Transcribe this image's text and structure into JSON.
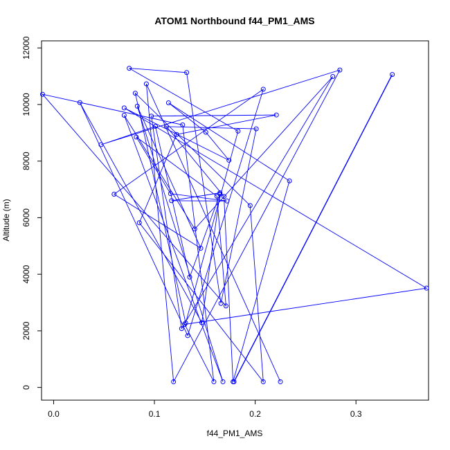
{
  "chart_data": {
    "type": "line",
    "title": "ATOM1 Northbound f44_PM1_AMS",
    "xlabel": "f44_PM1_AMS",
    "ylabel": "Altitude (m)",
    "xlim": [
      -0.012,
      0.372
    ],
    "ylim": [
      -450,
      12250
    ],
    "xticks": [
      0.0,
      0.1,
      0.2,
      0.3
    ],
    "xtick_labels": [
      "0.0",
      "0.1",
      "0.2",
      "0.3"
    ],
    "yticks": [
      0,
      2000,
      4000,
      6000,
      8000,
      10000,
      12000
    ],
    "ytick_labels": [
      "0",
      "2000",
      "4000",
      "6000",
      "8000",
      "10000",
      "12000"
    ],
    "grid": false,
    "color": "#0000ff",
    "series": [
      {
        "x": [
          0.179,
          0.336
        ],
        "y": [
          200,
          11060
        ]
      },
      {
        "x": [
          0.225,
          0.092,
          0.119,
          0.284,
          0.047,
          0.101,
          0.135,
          0.165,
          0.147,
          0.026,
          0.133,
          0.208,
          0.06,
          0.146,
          0.083,
          0.168,
          0.07,
          0.14,
          0.277,
          0.127,
          0.097,
          0.221,
          0.122,
          0.085,
          0.208,
          0.195,
          0.081,
          0.131,
          0.183,
          0.075,
          0.132,
          0.166,
          0.201,
          0.112,
          0.169,
          0.178,
          0.234,
          0.114,
          0.151,
          0.174,
          0.07,
          0.37,
          0.13,
          0.159,
          0.128,
          -0.011,
          0.171,
          0.162,
          0.082,
          0.116,
          0.172,
          0.117,
          0.165
        ],
        "y": [
          200,
          10730,
          200,
          11220,
          8580,
          9230,
          3900,
          6840,
          2290,
          10070,
          1830,
          10540,
          6830,
          4920,
          9940,
          200,
          9620,
          5600,
          10990,
          2080,
          9590,
          9630,
          8940,
          5820,
          200,
          6430,
          10400,
          2280,
          9060,
          11280,
          11130,
          2970,
          9140,
          9220,
          6750,
          200,
          7300,
          10060,
          9020,
          8030,
          9880,
          3510,
          2230,
          200,
          9280,
          10360,
          2880,
          6760,
          8850,
          6850,
          6590,
          6600,
          6880
        ]
      }
    ]
  }
}
